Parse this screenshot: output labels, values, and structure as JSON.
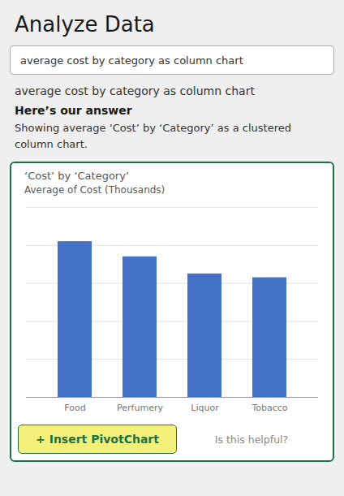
{
  "chart_data": {
    "type": "bar",
    "title": "‘Cost’ by ‘Category’",
    "subtitle": "Average of Cost (Thousands)",
    "categories": [
      "Food",
      "Perfumery",
      "Liquor",
      "Tobacco"
    ],
    "values": [
      82,
      74,
      65,
      63
    ],
    "color": "#4472c4",
    "ylim": [
      0,
      100
    ],
    "yticks": [
      0,
      20,
      40,
      60,
      80,
      100
    ],
    "grid": true,
    "tick_labels": "x",
    "annotations": [
      "Analyze Data",
      "average cost by category as column chart",
      "average cost by category as column chart",
      "Here’s our answer",
      "Showing average ‘Cost’ by ‘Category’ as a clustered\ncolumn chart.",
      "+ Insert PivotChart",
      "Is this helpful?"
    ]
  }
}
